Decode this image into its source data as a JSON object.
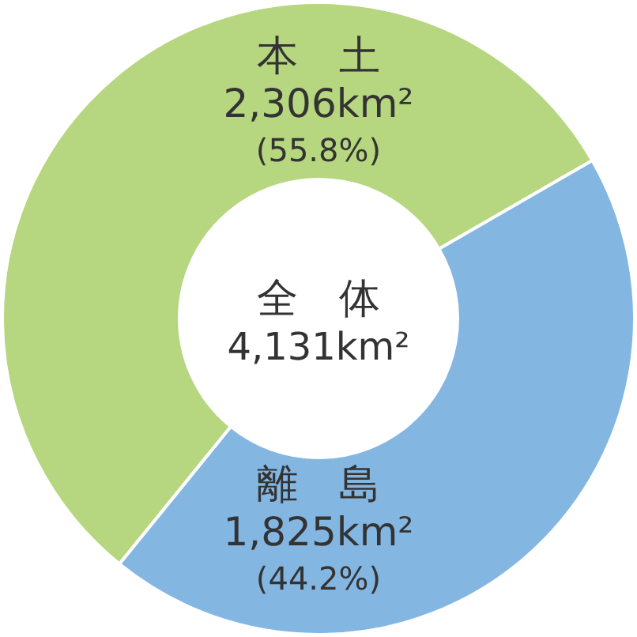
{
  "chart_data": {
    "type": "donut",
    "title": "全　体",
    "subtitle": "4,131km²",
    "categories": [
      "本　土",
      "離　島"
    ],
    "values": [
      2306,
      1825
    ],
    "value_labels": [
      "2,306km²",
      "1,825km²"
    ],
    "annotations": [
      "(55.8%)",
      "(44.2%)"
    ],
    "colors": [
      "#b6d67f",
      "#84b6e2"
    ]
  }
}
